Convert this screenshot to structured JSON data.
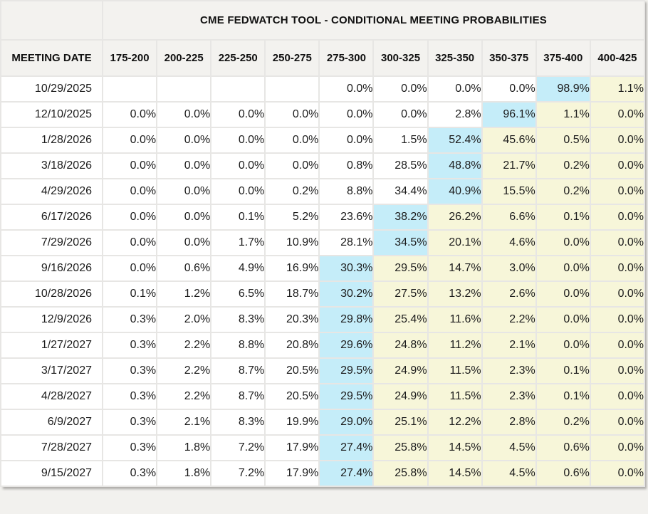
{
  "title": "CME FEDWATCH TOOL - CONDITIONAL MEETING PROBABILITIES",
  "colors": {
    "highlight_blue": "#c5edf9",
    "highlight_yellow": "#f7f6d9",
    "header_bg": "#f3f2ef",
    "border": "#e7e6e4"
  },
  "table": {
    "date_header": "MEETING DATE",
    "rate_headers": [
      "175-200",
      "200-225",
      "225-250",
      "250-275",
      "275-300",
      "300-325",
      "325-350",
      "350-375",
      "375-400",
      "400-425"
    ],
    "rows": [
      {
        "date": "10/29/2025",
        "values": [
          "",
          "",
          "",
          "",
          "0.0%",
          "0.0%",
          "0.0%",
          "0.0%",
          "98.9%",
          "1.1%"
        ],
        "blue_index": 8
      },
      {
        "date": "12/10/2025",
        "values": [
          "0.0%",
          "0.0%",
          "0.0%",
          "0.0%",
          "0.0%",
          "0.0%",
          "2.8%",
          "96.1%",
          "1.1%",
          "0.0%"
        ],
        "blue_index": 7
      },
      {
        "date": "1/28/2026",
        "values": [
          "0.0%",
          "0.0%",
          "0.0%",
          "0.0%",
          "0.0%",
          "1.5%",
          "52.4%",
          "45.6%",
          "0.5%",
          "0.0%"
        ],
        "blue_index": 6
      },
      {
        "date": "3/18/2026",
        "values": [
          "0.0%",
          "0.0%",
          "0.0%",
          "0.0%",
          "0.8%",
          "28.5%",
          "48.8%",
          "21.7%",
          "0.2%",
          "0.0%"
        ],
        "blue_index": 6
      },
      {
        "date": "4/29/2026",
        "values": [
          "0.0%",
          "0.0%",
          "0.0%",
          "0.2%",
          "8.8%",
          "34.4%",
          "40.9%",
          "15.5%",
          "0.2%",
          "0.0%"
        ],
        "blue_index": 6
      },
      {
        "date": "6/17/2026",
        "values": [
          "0.0%",
          "0.0%",
          "0.1%",
          "5.2%",
          "23.6%",
          "38.2%",
          "26.2%",
          "6.6%",
          "0.1%",
          "0.0%"
        ],
        "blue_index": 5
      },
      {
        "date": "7/29/2026",
        "values": [
          "0.0%",
          "0.0%",
          "1.7%",
          "10.9%",
          "28.1%",
          "34.5%",
          "20.1%",
          "4.6%",
          "0.0%",
          "0.0%"
        ],
        "blue_index": 5
      },
      {
        "date": "9/16/2026",
        "values": [
          "0.0%",
          "0.6%",
          "4.9%",
          "16.9%",
          "30.3%",
          "29.5%",
          "14.7%",
          "3.0%",
          "0.0%",
          "0.0%"
        ],
        "blue_index": 4
      },
      {
        "date": "10/28/2026",
        "values": [
          "0.1%",
          "1.2%",
          "6.5%",
          "18.7%",
          "30.2%",
          "27.5%",
          "13.2%",
          "2.6%",
          "0.0%",
          "0.0%"
        ],
        "blue_index": 4
      },
      {
        "date": "12/9/2026",
        "values": [
          "0.3%",
          "2.0%",
          "8.3%",
          "20.3%",
          "29.8%",
          "25.4%",
          "11.6%",
          "2.2%",
          "0.0%",
          "0.0%"
        ],
        "blue_index": 4
      },
      {
        "date": "1/27/2027",
        "values": [
          "0.3%",
          "2.2%",
          "8.8%",
          "20.8%",
          "29.6%",
          "24.8%",
          "11.2%",
          "2.1%",
          "0.0%",
          "0.0%"
        ],
        "blue_index": 4
      },
      {
        "date": "3/17/2027",
        "values": [
          "0.3%",
          "2.2%",
          "8.7%",
          "20.5%",
          "29.5%",
          "24.9%",
          "11.5%",
          "2.3%",
          "0.1%",
          "0.0%"
        ],
        "blue_index": 4
      },
      {
        "date": "4/28/2027",
        "values": [
          "0.3%",
          "2.2%",
          "8.7%",
          "20.5%",
          "29.5%",
          "24.9%",
          "11.5%",
          "2.3%",
          "0.1%",
          "0.0%"
        ],
        "blue_index": 4
      },
      {
        "date": "6/9/2027",
        "values": [
          "0.3%",
          "2.1%",
          "8.3%",
          "19.9%",
          "29.0%",
          "25.1%",
          "12.2%",
          "2.8%",
          "0.2%",
          "0.0%"
        ],
        "blue_index": 4
      },
      {
        "date": "7/28/2027",
        "values": [
          "0.3%",
          "1.8%",
          "7.2%",
          "17.9%",
          "27.4%",
          "25.8%",
          "14.5%",
          "4.5%",
          "0.6%",
          "0.0%"
        ],
        "blue_index": 4
      },
      {
        "date": "9/15/2027",
        "values": [
          "0.3%",
          "1.8%",
          "7.2%",
          "17.9%",
          "27.4%",
          "25.8%",
          "14.5%",
          "4.5%",
          "0.6%",
          "0.0%"
        ],
        "blue_index": 4
      }
    ]
  }
}
